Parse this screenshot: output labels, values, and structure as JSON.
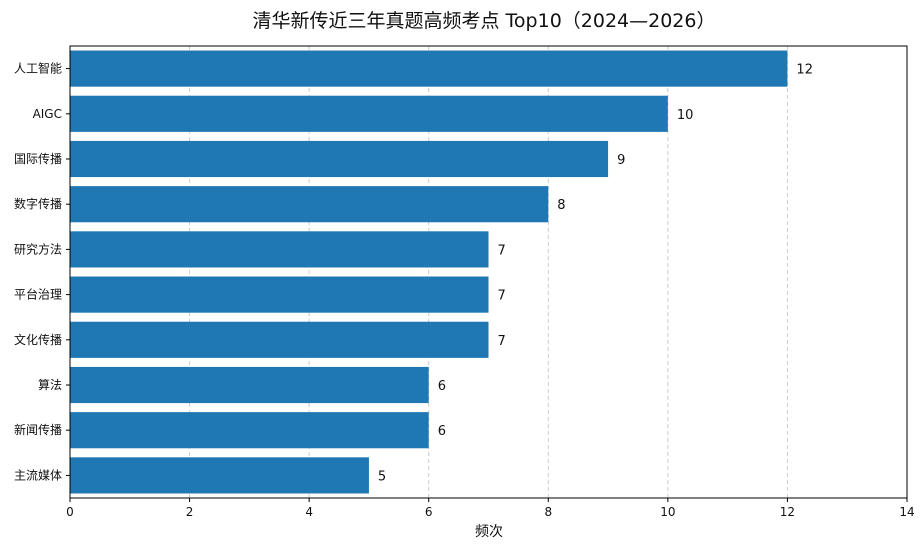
{
  "chart_data": {
    "type": "bar",
    "orientation": "horizontal",
    "title": "清华新传近三年真题高频考点 Top10（2024—2026）",
    "xlabel": "频次",
    "ylabel": "",
    "xlim": [
      0,
      14
    ],
    "xticks": [
      0,
      2,
      4,
      6,
      8,
      10,
      12,
      14
    ],
    "grid": "x-dashed",
    "bar_color": "#1f77b4",
    "categories": [
      "人工智能",
      "AIGC",
      "国际传播",
      "数字传播",
      "研究方法",
      "平台治理",
      "文化传播",
      "算法",
      "新闻传播",
      "主流媒体"
    ],
    "values": [
      12,
      10,
      9,
      8,
      7,
      7,
      7,
      6,
      6,
      5
    ]
  }
}
